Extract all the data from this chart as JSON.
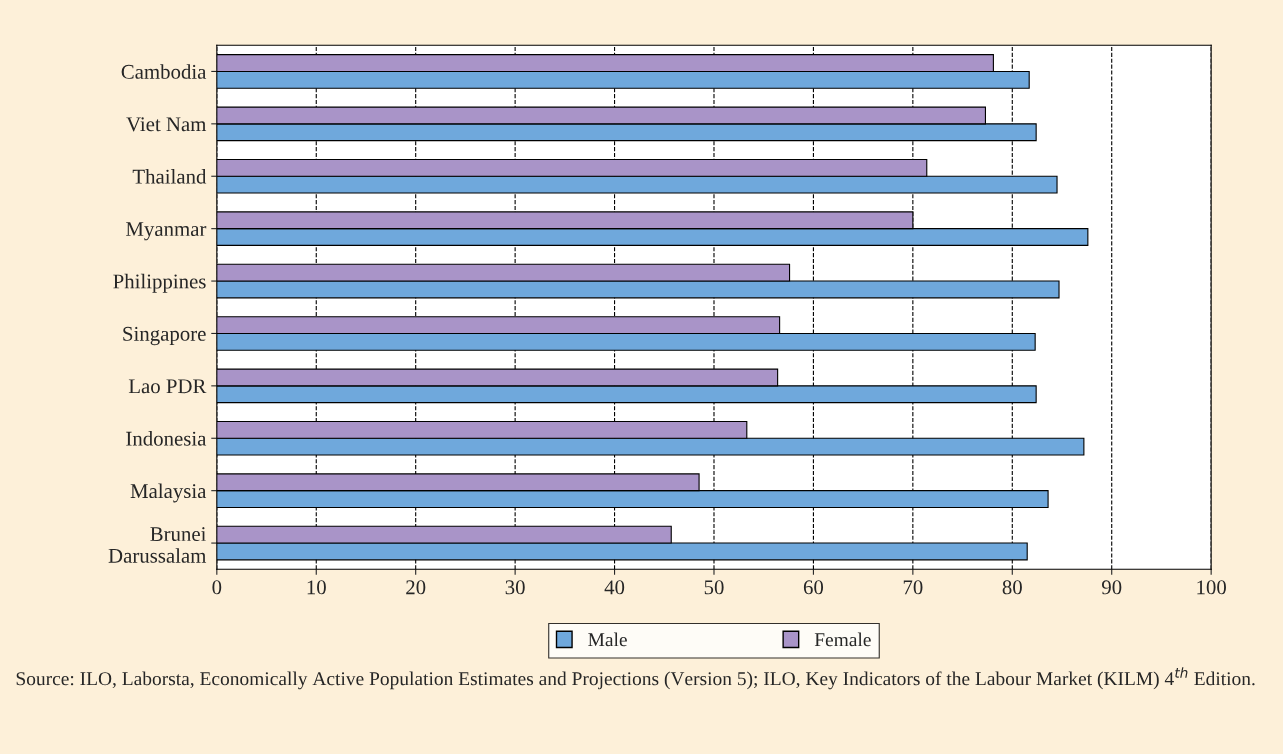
{
  "chart_data": {
    "type": "bar",
    "orientation": "horizontal",
    "categories": [
      "Cambodia",
      "Viet Nam",
      "Thailand",
      "Myanmar",
      "Philippines",
      "Singapore",
      "Lao PDR",
      "Indonesia",
      "Malaysia",
      "Brunei\nDarussalam"
    ],
    "series": [
      {
        "name": "Male",
        "color": "#6fa8dc",
        "values": [
          81.7,
          82.4,
          84.5,
          87.6,
          84.7,
          82.3,
          82.4,
          87.2,
          83.6,
          81.5
        ]
      },
      {
        "name": "Female",
        "color": "#a994c8",
        "values": [
          78.1,
          77.3,
          71.4,
          70.0,
          57.6,
          56.6,
          56.4,
          53.3,
          48.5,
          45.7
        ]
      }
    ],
    "xlim": [
      0,
      100
    ],
    "xticks": [
      0,
      10,
      20,
      30,
      40,
      50,
      60,
      70,
      80,
      90,
      100
    ],
    "grid": "x",
    "legend": "bottom",
    "annotations": [
      "Source: ILO, Laborsta, Economically Active Population Estimates and Projections (Version 5); ILO, Key Indicators of the Labour Market (KILM) 4$^{th}$ Edition."
    ]
  }
}
